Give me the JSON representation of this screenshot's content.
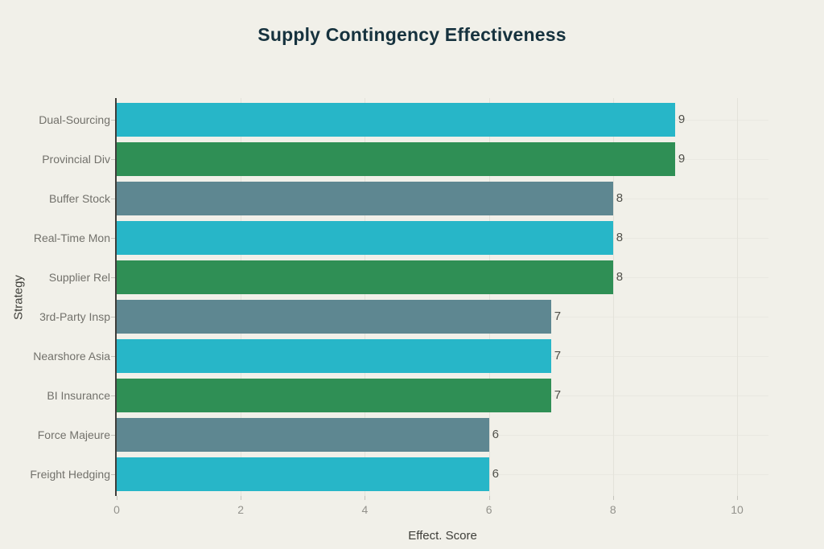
{
  "chart_data": {
    "type": "bar",
    "orientation": "horizontal",
    "title": "Supply Contingency Effectiveness",
    "xlabel": "Effect. Score",
    "ylabel": "Strategy",
    "categories": [
      "Dual-Sourcing",
      "Provincial Div",
      "Buffer Stock",
      "Real-Time Mon",
      "Supplier Rel",
      "3rd-Party Insp",
      "Nearshore Asia",
      "BI Insurance",
      "Force Majeure",
      "Freight Hedging"
    ],
    "values": [
      9,
      9,
      8,
      8,
      8,
      7,
      7,
      7,
      6,
      6
    ],
    "value_labels": [
      "9",
      "9",
      "8",
      "8",
      "8",
      "7",
      "7",
      "7",
      "6",
      "6"
    ],
    "bar_colors": [
      "#27b6c8",
      "#2f8f55",
      "#5e8791",
      "#27b6c8",
      "#2f8f55",
      "#5e8791",
      "#27b6c8",
      "#2f8f55",
      "#5e8791",
      "#27b6c8"
    ],
    "xlim": [
      0,
      10.5
    ],
    "xticks": [
      "0",
      "2",
      "4",
      "6",
      "8",
      "10"
    ],
    "xtick_values": [
      0,
      2,
      4,
      6,
      8,
      10
    ],
    "grid": "on",
    "legend": "none"
  },
  "colors": {
    "background": "#f1f0e9",
    "title": "#16323e",
    "palette_cyan": "#27b6c8",
    "palette_green": "#2f8f55",
    "palette_slate": "#5e8791",
    "axis_line": "#3d3d3a",
    "grid_vertical": "#e3e2da",
    "grid_horizontal": "#e9e8e1",
    "tick_label": "#93928c",
    "category_label": "#72716b",
    "value_label": "#50504a"
  }
}
